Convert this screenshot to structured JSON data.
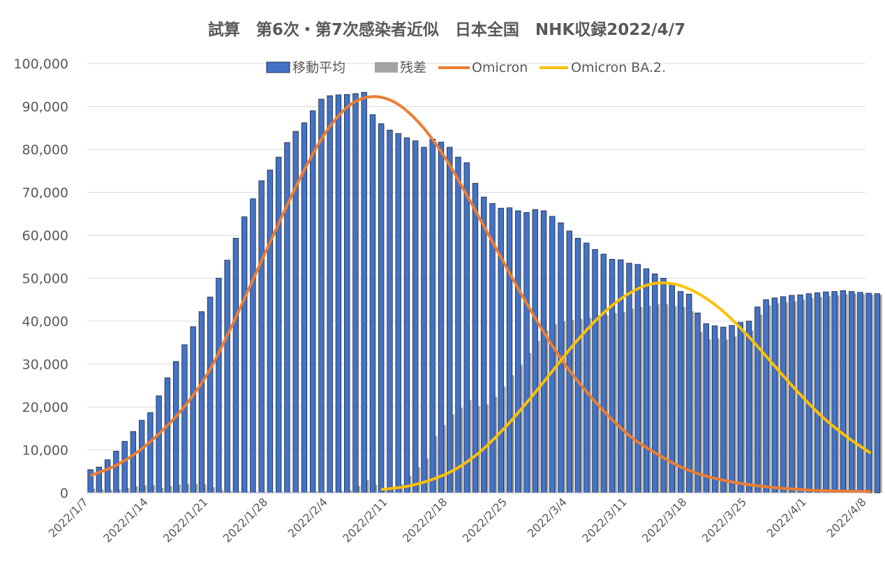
{
  "chart_data": {
    "type": "bar",
    "title": "試算　第6次・第7次感染者近似　日本全国　NHK収録2022/4/7",
    "xlabel": "",
    "ylabel": "",
    "ylim": [
      0,
      100000
    ],
    "yticks": [
      0,
      10000,
      20000,
      30000,
      40000,
      50000,
      60000,
      70000,
      80000,
      90000,
      100000
    ],
    "ytick_labels": [
      "0",
      "10,000",
      "20,000",
      "30,000",
      "40,000",
      "50,000",
      "60,000",
      "70,000",
      "80,000",
      "90,000",
      "100,000"
    ],
    "x_start": "2022-01-07",
    "x_end": "2022-04-08",
    "xtick_labels": [
      "2022/1/7",
      "2022/1/14",
      "2022/1/21",
      "2022/1/28",
      "2022/2/4",
      "2022/2/11",
      "2022/2/18",
      "2022/2/25",
      "2022/3/4",
      "2022/3/11",
      "2022/3/18",
      "2022/3/25",
      "2022/4/1",
      "2022/4/8"
    ],
    "grid": true,
    "legend_position": "top",
    "series": [
      {
        "name": "移動平均",
        "kind": "bar",
        "color": "#4472c4",
        "values": [
          5400,
          6000,
          7700,
          9700,
          12000,
          14300,
          16900,
          18700,
          22600,
          26800,
          30600,
          34500,
          38700,
          42200,
          45600,
          50000,
          54200,
          59300,
          64300,
          68500,
          72700,
          75200,
          78200,
          81600,
          84200,
          86200,
          89000,
          91700,
          92500,
          92700,
          92800,
          93000,
          93300,
          88100,
          86000,
          84500,
          83700,
          82700,
          82000,
          80500,
          82400,
          81700,
          80500,
          78200,
          76900,
          72100,
          68900,
          67400,
          66300,
          66400,
          65700,
          65300,
          66000,
          65700,
          64400,
          62900,
          61000,
          59300,
          58200,
          56700,
          55600,
          54400,
          54300,
          53500,
          53200,
          52200,
          51000,
          50000,
          48500,
          46900,
          46300,
          41900,
          39400,
          38900,
          38600,
          39000,
          39700,
          40000,
          43300,
          45000,
          45400,
          45700,
          46000,
          46100,
          46400,
          46600,
          46800,
          46900,
          47100,
          46900,
          46700,
          46500,
          46400
        ]
      },
      {
        "name": "残差",
        "kind": "bar",
        "color": "#a5a5a5",
        "values": [
          1000,
          800,
          700,
          800,
          1200,
          1500,
          1700,
          1800,
          1200,
          1600,
          1900,
          2100,
          2100,
          2000,
          1300,
          600,
          400,
          300,
          200,
          200,
          200,
          200,
          200,
          200,
          200,
          200,
          300,
          300,
          300,
          400,
          600,
          1600,
          3000,
          1900,
          1000,
          900,
          2000,
          4000,
          6000,
          8000,
          13200,
          15800,
          18300,
          19800,
          21600,
          20200,
          20600,
          22400,
          24800,
          27400,
          29800,
          32600,
          35400,
          37800,
          39300,
          40000,
          40300,
          40500,
          40800,
          41200,
          41400,
          41900,
          42100,
          42900,
          43300,
          43600,
          43900,
          43900,
          43500,
          43300,
          42300,
          37500,
          35800,
          36000,
          35700,
          36400,
          37100,
          37800,
          41500,
          43700,
          44200,
          44400,
          44600,
          45000,
          45400,
          45600,
          45800,
          46000,
          46300,
          46400,
          46300,
          46200,
          46100
        ]
      },
      {
        "name": "Omicron",
        "kind": "line",
        "color": "#ed7d31",
        "values": [
          4100,
          6300,
          9700,
          14500,
          20500,
          28500,
          39500,
          51500,
          63500,
          75000,
          84500,
          90500,
          92300,
          90500,
          85500,
          78000,
          68500,
          58500,
          48500,
          39000,
          30500,
          23500,
          17500,
          12500,
          9000,
          6000,
          4000,
          2700,
          1800,
          1200,
          800,
          500,
          400,
          300
        ]
      },
      {
        "name": "Omicron BA.2.",
        "kind": "line",
        "color": "#ffc000",
        "values": [
          800,
          1500,
          3000,
          5500,
          9500,
          15000,
          21500,
          28500,
          35500,
          41500,
          46000,
          48600,
          48600,
          46300,
          42200,
          36600,
          30200,
          23800,
          18000,
          13300,
          9400
        ]
      }
    ]
  }
}
